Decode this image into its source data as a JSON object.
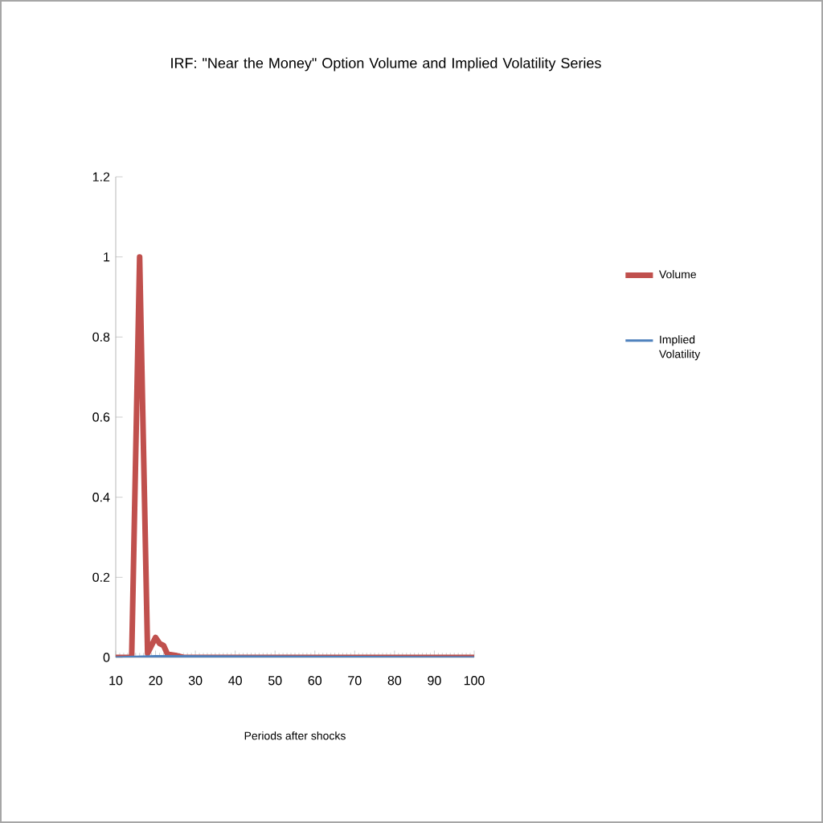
{
  "chart_data": {
    "type": "line",
    "title": "IRF: \"Near the Money\" Option Volume and Implied Volatility Series",
    "xlabel": "Periods after shocks",
    "xlim": [
      10,
      100
    ],
    "xticks": [
      10,
      20,
      30,
      40,
      50,
      60,
      70,
      80,
      90,
      100
    ],
    "ylim": [
      0,
      1.2
    ],
    "yticks": [
      0,
      0.2,
      0.4,
      0.6,
      0.8,
      1,
      1.2
    ],
    "series": [
      {
        "name": "Volume",
        "color": "#c0504d",
        "x": [
          10,
          14,
          16,
          18,
          20,
          21,
          22,
          23,
          25,
          27,
          100
        ],
        "values": [
          0,
          0,
          1.0,
          0.01,
          0.05,
          0.035,
          0.03,
          0.008,
          0.005,
          0,
          0
        ]
      },
      {
        "name": "Implied Volatility",
        "color": "#4f81bd",
        "x": [
          10,
          20,
          100
        ],
        "values": [
          0,
          0.003,
          0
        ]
      }
    ],
    "legend": "right",
    "grid": false,
    "marker": "none",
    "line_style": "solid"
  }
}
